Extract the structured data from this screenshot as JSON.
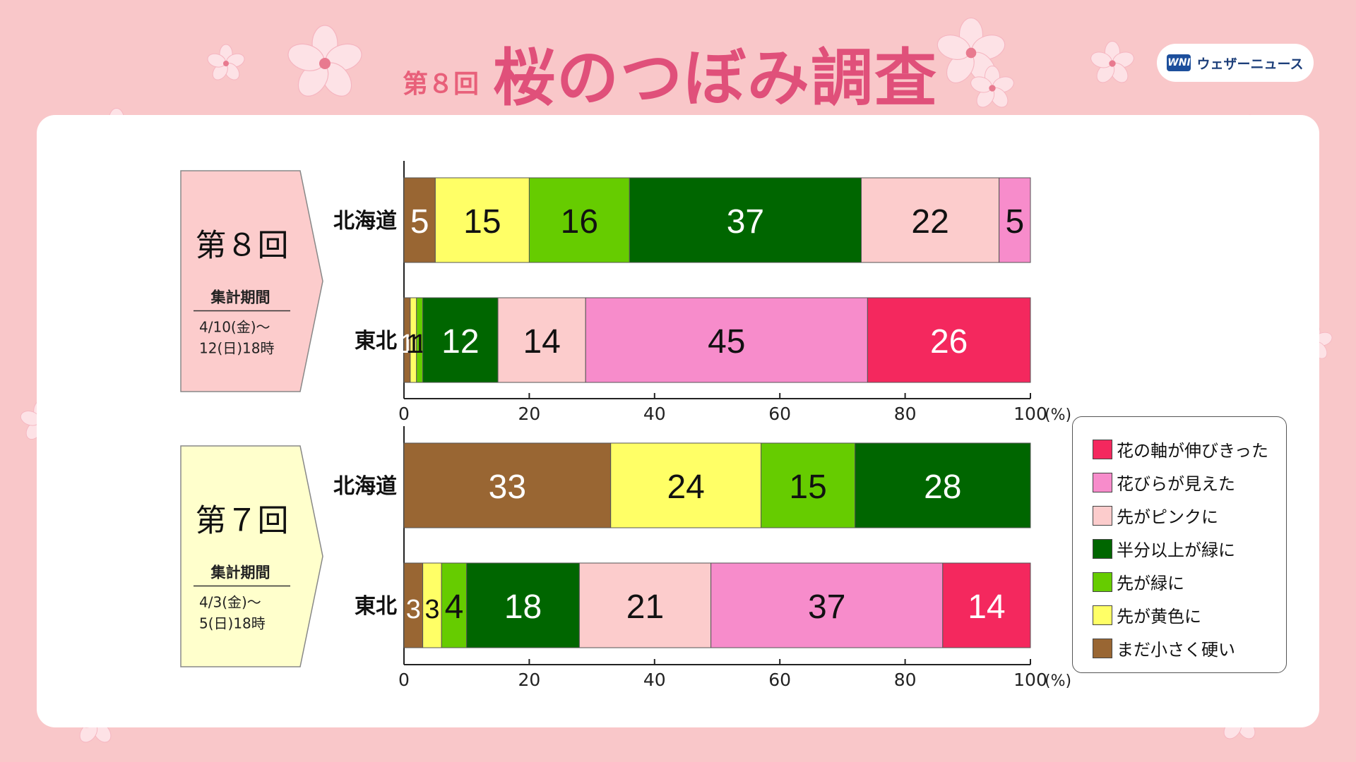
{
  "header": {
    "round_label": "第８回",
    "title": "桜のつぼみ調査",
    "logo_mark": "WNI",
    "logo_text": "ウェザーニュース"
  },
  "legend": [
    {
      "label": "花の軸が伸びきった",
      "color": "#f4285e"
    },
    {
      "label": "花びらが見えた",
      "color": "#f78ccb"
    },
    {
      "label": "先がピンクに",
      "color": "#fccccc"
    },
    {
      "label": "半分以上が緑に",
      "color": "#006600"
    },
    {
      "label": "先が緑に",
      "color": "#66cc00"
    },
    {
      "label": "先が黄色に",
      "color": "#ffff66"
    },
    {
      "label": "まだ小さく硬い",
      "color": "#996633"
    }
  ],
  "chart_data": [
    {
      "type": "bar",
      "orientation": "horizontal",
      "stacked": true,
      "round_label": "第８回",
      "period_label": "集計期間",
      "period_line1": "4/10(金)～",
      "period_line2": "12(日)18時",
      "panel_color": "#fccccc",
      "categories": [
        "北海道",
        "東北"
      ],
      "xlim": [
        0,
        100
      ],
      "xticks": [
        "0",
        "20",
        "40",
        "60",
        "80",
        "100"
      ],
      "x_unit": "(%)",
      "series": [
        {
          "name": "まだ小さく硬い",
          "color": "#996633",
          "values": [
            5,
            1
          ]
        },
        {
          "name": "先が黄色に",
          "color": "#ffff66",
          "values": [
            15,
            1
          ]
        },
        {
          "name": "先が緑に",
          "color": "#66cc00",
          "values": [
            16,
            1
          ]
        },
        {
          "name": "半分以上が緑に",
          "color": "#006600",
          "values": [
            37,
            12
          ]
        },
        {
          "name": "先がピンクに",
          "color": "#fccccc",
          "values": [
            22,
            14
          ]
        },
        {
          "name": "花びらが見えた",
          "color": "#f78ccb",
          "values": [
            5,
            45
          ]
        },
        {
          "name": "花の軸が伸びきった",
          "color": "#f4285e",
          "values": [
            0,
            26
          ]
        }
      ]
    },
    {
      "type": "bar",
      "orientation": "horizontal",
      "stacked": true,
      "round_label": "第７回",
      "period_label": "集計期間",
      "period_line1": "4/3(金)～",
      "period_line2": "5(日)18時",
      "panel_color": "#ffffcc",
      "categories": [
        "北海道",
        "東北"
      ],
      "xlim": [
        0,
        100
      ],
      "xticks": [
        "0",
        "20",
        "40",
        "60",
        "80",
        "100"
      ],
      "x_unit": "(%)",
      "series": [
        {
          "name": "まだ小さく硬い",
          "color": "#996633",
          "values": [
            33,
            3
          ]
        },
        {
          "name": "先が黄色に",
          "color": "#ffff66",
          "values": [
            24,
            3
          ]
        },
        {
          "name": "先が緑に",
          "color": "#66cc00",
          "values": [
            15,
            4
          ]
        },
        {
          "name": "半分以上が緑に",
          "color": "#006600",
          "values": [
            28,
            18
          ]
        },
        {
          "name": "先がピンクに",
          "color": "#fccccc",
          "values": [
            0,
            21
          ]
        },
        {
          "name": "花びらが見えた",
          "color": "#f78ccb",
          "values": [
            0,
            37
          ]
        },
        {
          "name": "花の軸が伸びきった",
          "color": "#f4285e",
          "values": [
            0,
            14
          ]
        }
      ]
    }
  ]
}
